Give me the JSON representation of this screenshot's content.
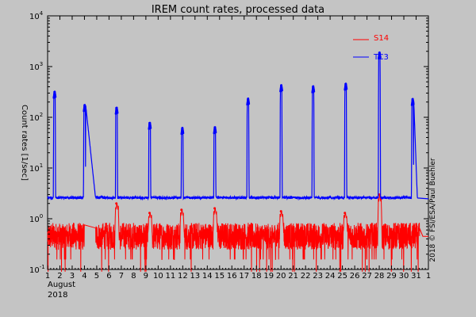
{
  "chart_data": {
    "type": "line",
    "title": "IREM count rates, processed data",
    "ylabel": "Count rates [1/sec]",
    "yscale": "log",
    "ylim": [
      0.1,
      10000
    ],
    "y_ticks": [
      {
        "value": 0.1,
        "base": "10",
        "exp": "-1"
      },
      {
        "value": 1,
        "base": "10",
        "exp": "0"
      },
      {
        "value": 10,
        "base": "10",
        "exp": "1"
      },
      {
        "value": 100,
        "base": "10",
        "exp": "2"
      },
      {
        "value": 1000,
        "base": "10",
        "exp": "3"
      },
      {
        "value": 10000,
        "base": "10",
        "exp": "4"
      }
    ],
    "xlim": [
      1,
      32
    ],
    "x_tick_labels": [
      "1",
      "2",
      "3",
      "4",
      "5",
      "6",
      "7",
      "8",
      "9",
      "10",
      "11",
      "12",
      "13",
      "14",
      "15",
      "16",
      "17",
      "18",
      "19",
      "20",
      "21",
      "22",
      "23",
      "24",
      "25",
      "26",
      "27",
      "28",
      "29",
      "30",
      "31",
      "1"
    ],
    "x_month_label": "August",
    "x_year_label": "2018",
    "credit": "2018 © FSI/ESA/Paul Buehler",
    "grid": false,
    "legend_position": "top-right",
    "series": [
      {
        "name": "S14",
        "color": "#ff0000",
        "baseline": 0.45,
        "spikes": [
          {
            "day": 6.6,
            "value": 2
          },
          {
            "day": 9.3,
            "value": 1.3
          },
          {
            "day": 11.9,
            "value": 1.5
          },
          {
            "day": 14.6,
            "value": 1.6
          },
          {
            "day": 20.0,
            "value": 1.4
          },
          {
            "day": 25.2,
            "value": 1.3
          },
          {
            "day": 28.0,
            "value": 3
          }
        ],
        "gap": [
          4.0,
          4.9
        ]
      },
      {
        "name": "TC3",
        "color": "#0000ff",
        "baseline": 2.6,
        "spikes": [
          {
            "day": 1.55,
            "value": 320
          },
          {
            "day": 4.0,
            "value": 175
          },
          {
            "day": 6.6,
            "value": 155
          },
          {
            "day": 9.3,
            "value": 78
          },
          {
            "day": 11.95,
            "value": 62
          },
          {
            "day": 14.6,
            "value": 64
          },
          {
            "day": 17.3,
            "value": 235
          },
          {
            "day": 20.0,
            "value": 430
          },
          {
            "day": 22.6,
            "value": 410
          },
          {
            "day": 25.25,
            "value": 460
          },
          {
            "day": 28.0,
            "value": 1900
          },
          {
            "day": 30.7,
            "value": 230
          }
        ]
      }
    ]
  }
}
